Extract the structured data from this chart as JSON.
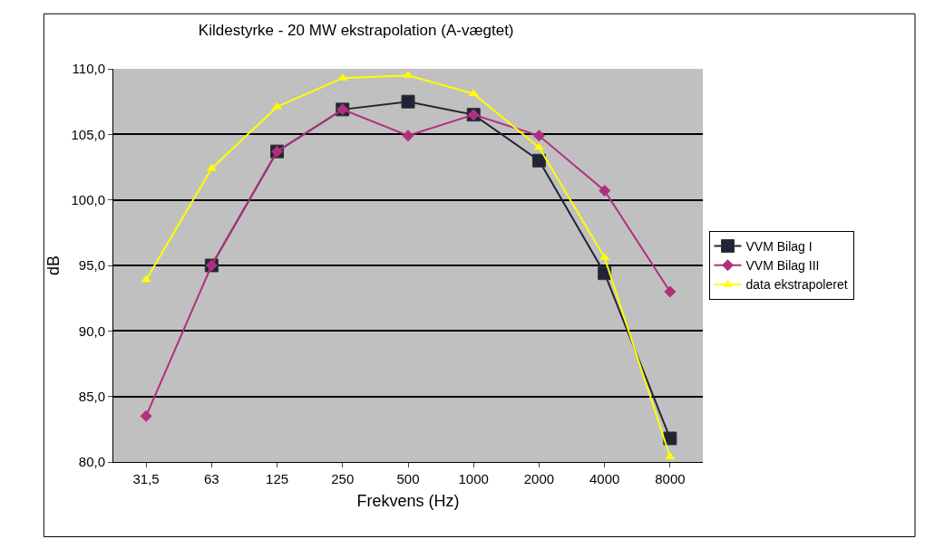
{
  "chart_data": {
    "type": "line",
    "title": "Kildestyrke - 20 MW ekstrapolation (A-vægtet)",
    "xlabel": "Frekvens (Hz)",
    "ylabel": "dB",
    "categories": [
      "31,5",
      "63",
      "125",
      "250",
      "500",
      "1000",
      "2000",
      "4000",
      "8000"
    ],
    "series": [
      {
        "name": "VVM Bilag I",
        "color": "#1f2537",
        "marker": "square",
        "values": [
          null,
          95.0,
          103.7,
          106.9,
          107.5,
          106.5,
          103.0,
          94.4,
          81.8
        ]
      },
      {
        "name": "VVM Bilag III",
        "color": "#b0307f",
        "marker": "diamond",
        "values": [
          83.5,
          95.0,
          103.7,
          106.9,
          104.9,
          106.5,
          104.9,
          100.7,
          93.0
        ]
      },
      {
        "name": "data ekstrapoleret",
        "color": "#ffff00",
        "marker": "triangle",
        "values": [
          93.9,
          102.4,
          107.1,
          109.3,
          109.5,
          108.1,
          104.0,
          95.6,
          80.4
        ]
      }
    ],
    "ylim": [
      80,
      110
    ],
    "yticks": [
      {
        "value": 80,
        "label": "80,0"
      },
      {
        "value": 85,
        "label": "85,0"
      },
      {
        "value": 90,
        "label": "90,0"
      },
      {
        "value": 95,
        "label": "95,0"
      },
      {
        "value": 100,
        "label": "100,0"
      },
      {
        "value": 105,
        "label": "105,0"
      },
      {
        "value": 110,
        "label": "110,0"
      }
    ],
    "grid": "y",
    "legend": "right",
    "line_style": "solid"
  }
}
